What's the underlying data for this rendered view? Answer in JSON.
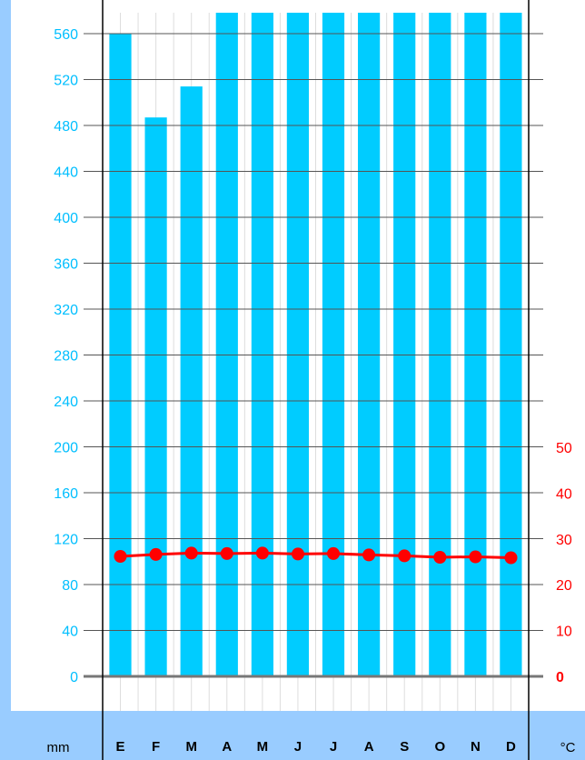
{
  "chart_data": {
    "type": "bar",
    "title": "",
    "categories": [
      "E",
      "F",
      "M",
      "A",
      "M",
      "J",
      "J",
      "A",
      "S",
      "O",
      "N",
      "D"
    ],
    "left_axis_unit": "mm",
    "right_axis_unit": "°C",
    "left_ticks": [
      0,
      40,
      80,
      120,
      160,
      200,
      240,
      280,
      320,
      360,
      400,
      440,
      480,
      520,
      560
    ],
    "right_ticks": [
      0,
      10,
      20,
      30,
      40,
      50
    ],
    "ylim_left": [
      0,
      580
    ],
    "ylim_right": [
      0,
      116
    ],
    "series": [
      {
        "name": "",
        "kind": "bar",
        "axis": "left",
        "values": [
          560,
          487,
          514,
          580,
          580,
          580,
          580,
          580,
          580,
          580,
          580,
          580
        ],
        "note_clipped_at_top": true
      },
      {
        "name": "",
        "kind": "line",
        "axis": "right",
        "values": [
          26.2,
          26.6,
          26.9,
          26.8,
          26.9,
          26.7,
          26.8,
          26.5,
          26.3,
          26.0,
          26.1,
          25.9
        ]
      }
    ],
    "colors": {
      "bar": "#00ccff",
      "line": "#ff0000",
      "left_axis_text": "#00bfff",
      "right_axis_text": "#ff0000",
      "band": "#99ccff",
      "grid": "#dddddd"
    },
    "grid": true
  }
}
